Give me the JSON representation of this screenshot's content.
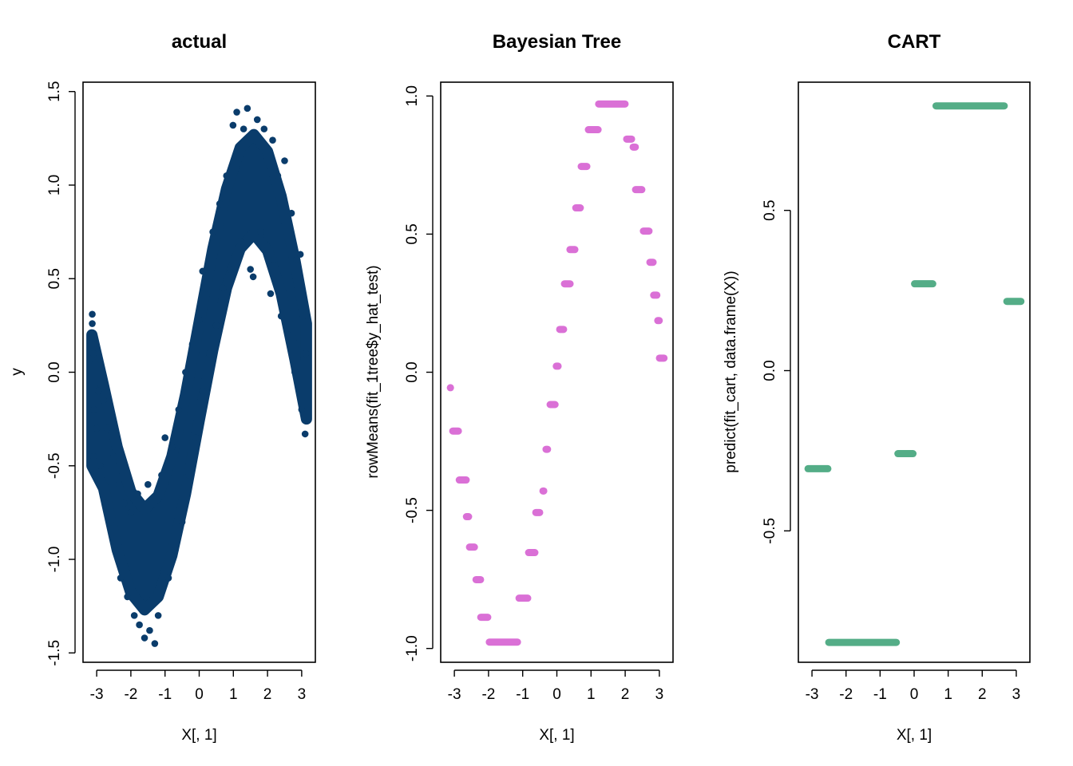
{
  "colors": {
    "actual": "#0a3c6b",
    "bayes": "#da70d6",
    "cart": "#54ad87",
    "axis": "#000000"
  },
  "chart_data": [
    {
      "type": "scatter",
      "title": "actual",
      "xlabel": "X[, 1]",
      "ylabel": "y",
      "xlim": [
        -3.4,
        3.4
      ],
      "ylim": [
        -1.55,
        1.55
      ],
      "xticks": [
        -3,
        -2,
        -1,
        0,
        1,
        2,
        3
      ],
      "xtick_labels": [
        "-3",
        "-2",
        "-1",
        "0",
        "1",
        "2",
        "3"
      ],
      "yticks": [
        -1.5,
        -1.0,
        -0.5,
        0.0,
        0.5,
        1.0,
        1.5
      ],
      "ytick_labels": [
        "-1.5",
        "-1.0",
        "-0.5",
        "0.0",
        "0.5",
        "1.0",
        "1.5"
      ],
      "dense_band": {
        "x": [
          -3.14,
          -2.8,
          -2.4,
          -2.0,
          -1.6,
          -1.2,
          -0.8,
          -0.4,
          0.0,
          0.4,
          0.8,
          1.2,
          1.6,
          2.0,
          2.4,
          2.8,
          3.14
        ],
        "lower": [
          -0.5,
          -0.62,
          -0.95,
          -1.18,
          -1.27,
          -1.2,
          -0.98,
          -0.65,
          -0.26,
          0.12,
          0.45,
          0.66,
          0.74,
          0.65,
          0.42,
          0.07,
          -0.25
        ],
        "upper": [
          0.2,
          -0.07,
          -0.4,
          -0.64,
          -0.73,
          -0.66,
          -0.45,
          -0.12,
          0.27,
          0.66,
          0.98,
          1.2,
          1.27,
          1.18,
          0.94,
          0.6,
          0.26
        ]
      },
      "points": [
        [
          -3.13,
          0.31
        ],
        [
          -3.13,
          0.26
        ],
        [
          -3.12,
          0.18
        ],
        [
          -3.1,
          0.1
        ],
        [
          -3.05,
          0.05
        ],
        [
          -3.08,
          -0.2
        ],
        [
          -3.1,
          -0.45
        ],
        [
          -3.0,
          -0.3
        ],
        [
          -2.95,
          -0.1
        ],
        [
          -2.9,
          -0.5
        ],
        [
          -2.8,
          -0.15
        ],
        [
          -2.75,
          -0.7
        ],
        [
          -2.7,
          -0.3
        ],
        [
          -2.6,
          -0.8
        ],
        [
          -2.5,
          -0.45
        ],
        [
          -2.45,
          -0.95
        ],
        [
          -2.35,
          -0.6
        ],
        [
          -2.3,
          -1.1
        ],
        [
          -2.2,
          -0.7
        ],
        [
          -2.1,
          -1.2
        ],
        [
          -2.0,
          -0.75
        ],
        [
          -1.9,
          -1.3
        ],
        [
          -1.8,
          -0.65
        ],
        [
          -1.75,
          -1.35
        ],
        [
          -1.6,
          -1.42
        ],
        [
          -1.5,
          -0.6
        ],
        [
          -1.45,
          -1.38
        ],
        [
          -1.3,
          -1.45
        ],
        [
          -1.2,
          -1.3
        ],
        [
          -1.1,
          -0.55
        ],
        [
          -1.0,
          -0.35
        ],
        [
          -0.9,
          -1.1
        ],
        [
          -0.8,
          -0.4
        ],
        [
          -0.7,
          -0.95
        ],
        [
          -0.6,
          -0.2
        ],
        [
          -0.5,
          -0.8
        ],
        [
          -0.4,
          0.0
        ],
        [
          -0.3,
          -0.55
        ],
        [
          -0.2,
          0.15
        ],
        [
          -0.1,
          -0.35
        ],
        [
          0.0,
          0.28
        ],
        [
          0.1,
          0.54
        ],
        [
          0.1,
          -0.1
        ],
        [
          0.2,
          0.45
        ],
        [
          0.3,
          0.1
        ],
        [
          0.4,
          0.75
        ],
        [
          0.5,
          0.25
        ],
        [
          0.6,
          0.9
        ],
        [
          0.7,
          0.45
        ],
        [
          0.8,
          1.05
        ],
        [
          0.9,
          0.55
        ],
        [
          0.99,
          1.32
        ],
        [
          1.1,
          1.39
        ],
        [
          1.2,
          0.7
        ],
        [
          1.3,
          1.3
        ],
        [
          1.41,
          1.41
        ],
        [
          1.5,
          0.55
        ],
        [
          1.58,
          0.51
        ],
        [
          1.7,
          1.35
        ],
        [
          1.8,
          0.75
        ],
        [
          1.9,
          1.3
        ],
        [
          2.09,
          0.42
        ],
        [
          2.15,
          1.24
        ],
        [
          2.2,
          0.6
        ],
        [
          2.3,
          1.05
        ],
        [
          2.4,
          0.3
        ],
        [
          2.5,
          1.13
        ],
        [
          2.6,
          0.2
        ],
        [
          2.7,
          0.85
        ],
        [
          2.8,
          0.0
        ],
        [
          2.85,
          0.6
        ],
        [
          2.96,
          0.63
        ],
        [
          3.0,
          -0.2
        ],
        [
          3.05,
          0.3
        ],
        [
          3.1,
          -0.33
        ],
        [
          3.12,
          0.1
        ]
      ]
    },
    {
      "type": "scatter",
      "title": "Bayesian Tree",
      "xlabel": "X[, 1]",
      "ylabel": "rowMeans(fit_1tree$y_hat_test)",
      "xlim": [
        -3.4,
        3.4
      ],
      "ylim": [
        -1.05,
        1.05
      ],
      "xticks": [
        -3,
        -2,
        -1,
        0,
        1,
        2,
        3
      ],
      "xtick_labels": [
        "-3",
        "-2",
        "-1",
        "0",
        "1",
        "2",
        "3"
      ],
      "yticks": [
        -1.0,
        -0.5,
        0.0,
        0.5,
        1.0
      ],
      "ytick_labels": [
        "-1.0",
        "-0.5",
        "0.0",
        "0.5",
        "1.0"
      ],
      "segments": [
        {
          "x0": -3.21,
          "x1": -3.02,
          "y": -0.056
        },
        {
          "x0": -3.14,
          "x1": -2.79,
          "y": -0.213
        },
        {
          "x0": -2.95,
          "x1": -2.56,
          "y": -0.39
        },
        {
          "x0": -2.74,
          "x1": -2.49,
          "y": -0.523
        },
        {
          "x0": -2.65,
          "x1": -2.32,
          "y": -0.633
        },
        {
          "x0": -2.46,
          "x1": -2.14,
          "y": -0.751
        },
        {
          "x0": -2.32,
          "x1": -1.93,
          "y": -0.887
        },
        {
          "x0": -2.07,
          "x1": -1.06,
          "y": -0.977
        },
        {
          "x0": -1.2,
          "x1": -0.76,
          "y": -0.818
        },
        {
          "x0": -0.92,
          "x1": -0.55,
          "y": -0.653
        },
        {
          "x0": -0.71,
          "x1": -0.41,
          "y": -0.508
        },
        {
          "x0": -0.5,
          "x1": -0.29,
          "y": -0.43
        },
        {
          "x0": -0.41,
          "x1": -0.18,
          "y": -0.279
        },
        {
          "x0": -0.29,
          "x1": 0.04,
          "y": -0.117
        },
        {
          "x0": -0.11,
          "x1": 0.13,
          "y": 0.022
        },
        {
          "x0": -0.01,
          "x1": 0.29,
          "y": 0.155
        },
        {
          "x0": 0.13,
          "x1": 0.48,
          "y": 0.32
        },
        {
          "x0": 0.29,
          "x1": 0.62,
          "y": 0.444
        },
        {
          "x0": 0.46,
          "x1": 0.78,
          "y": 0.595
        },
        {
          "x0": 0.62,
          "x1": 0.97,
          "y": 0.745
        },
        {
          "x0": 0.83,
          "x1": 1.3,
          "y": 0.878
        },
        {
          "x0": 1.13,
          "x1": 2.09,
          "y": 0.971
        },
        {
          "x0": 1.95,
          "x1": 2.28,
          "y": 0.844
        },
        {
          "x0": 2.14,
          "x1": 2.39,
          "y": 0.815
        },
        {
          "x0": 2.21,
          "x1": 2.58,
          "y": 0.661
        },
        {
          "x0": 2.44,
          "x1": 2.79,
          "y": 0.511
        },
        {
          "x0": 2.63,
          "x1": 2.91,
          "y": 0.398
        },
        {
          "x0": 2.74,
          "x1": 3.02,
          "y": 0.279
        },
        {
          "x0": 2.86,
          "x1": 3.09,
          "y": 0.187
        },
        {
          "x0": 2.91,
          "x1": 3.23,
          "y": 0.051
        }
      ]
    },
    {
      "type": "scatter",
      "title": "CART",
      "xlabel": "X[, 1]",
      "ylabel": "predict(fit_cart, data.frame(X))",
      "xlim": [
        -3.4,
        3.4
      ],
      "ylim": [
        -0.91,
        0.9
      ],
      "xticks": [
        -3,
        -2,
        -1,
        0,
        1,
        2,
        3
      ],
      "xtick_labels": [
        "-3",
        "-2",
        "-1",
        "0",
        "1",
        "2",
        "3"
      ],
      "yticks": [
        -0.5,
        0.0,
        0.5
      ],
      "ytick_labels": [
        "-0.5",
        "0.0",
        "0.5"
      ],
      "segments": [
        {
          "x0": -3.21,
          "x1": -2.44,
          "y": -0.306
        },
        {
          "x0": -2.6,
          "x1": -0.43,
          "y": -0.848
        },
        {
          "x0": -0.57,
          "x1": 0.06,
          "y": -0.259
        },
        {
          "x0": -0.08,
          "x1": 0.64,
          "y": 0.271
        },
        {
          "x0": 0.55,
          "x1": 2.74,
          "y": 0.826
        },
        {
          "x0": 2.63,
          "x1": 3.23,
          "y": 0.216
        }
      ]
    }
  ]
}
